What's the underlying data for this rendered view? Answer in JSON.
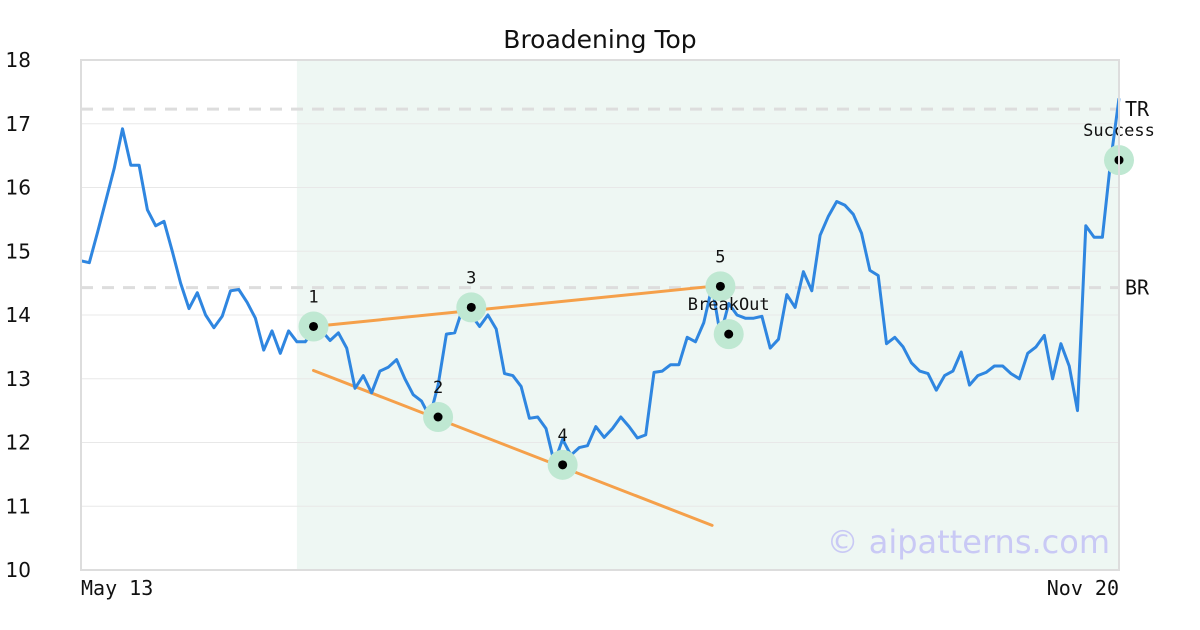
{
  "chart_data": {
    "type": "line",
    "title": "Broadening Top",
    "x_start_label": "May 13",
    "x_end_label": "Nov 20",
    "ylim": [
      10,
      18
    ],
    "yticks": [
      "10",
      "11",
      "12",
      "13",
      "14",
      "15",
      "16",
      "17",
      "18"
    ],
    "grid": "horizontal",
    "colors": {
      "price": "#2f86e0",
      "trendline": "#f5a04a",
      "level_line": "#dddddd",
      "highlight_zone": "#eef7f3",
      "marker_halo": "#bfe8d2",
      "marker": "#000000"
    },
    "series": [
      {
        "values": [
          14.85,
          14.82,
          15.3,
          15.8,
          16.3,
          16.92,
          16.35,
          16.35,
          15.65,
          15.4,
          15.47,
          15.0,
          14.5,
          14.1,
          14.35,
          14.0,
          13.8,
          13.98,
          14.38,
          14.4,
          14.2,
          13.95,
          13.45,
          13.75,
          13.4,
          13.75,
          13.58,
          13.58,
          13.75,
          13.75,
          13.6,
          13.72,
          13.48,
          12.85,
          13.05,
          12.78,
          13.12,
          13.18,
          13.3,
          13.0,
          12.75,
          12.65,
          12.4,
          12.9,
          13.7,
          13.72,
          14.12,
          14.0,
          13.82,
          14.0,
          13.78,
          13.08,
          13.05,
          12.88,
          12.38,
          12.4,
          12.22,
          11.68,
          12.05,
          11.8,
          11.92,
          11.95,
          12.25,
          12.08,
          12.22,
          12.4,
          12.25,
          12.07,
          12.12,
          13.1,
          13.12,
          13.22,
          13.22,
          13.65,
          13.58,
          13.88,
          14.45,
          13.68,
          14.18,
          14.0,
          13.95,
          13.95,
          13.98,
          13.48,
          13.62,
          14.32,
          14.12,
          14.68,
          14.38,
          15.25,
          15.55,
          15.78,
          15.72,
          15.58,
          15.28,
          14.7,
          14.62,
          13.55,
          13.65,
          13.5,
          13.25,
          13.12,
          13.08,
          12.82,
          13.05,
          13.12,
          13.42,
          12.9,
          13.05,
          13.1,
          13.2,
          13.2,
          13.08,
          13.0,
          13.4,
          13.5,
          13.68,
          13.0,
          13.55,
          13.2,
          12.5,
          15.4,
          15.22,
          15.22,
          16.42,
          17.4
        ]
      }
    ],
    "levels": [
      {
        "label": "TR",
        "y": 17.23
      },
      {
        "label": "BR",
        "y": 14.43
      }
    ],
    "highlight_range": {
      "start_index": 26,
      "end_index": 125
    },
    "trendlines": [
      {
        "from": {
          "index": 28,
          "y": 13.82
        },
        "to": {
          "index": 76,
          "y": 14.45
        }
      },
      {
        "from": {
          "index": 28,
          "y": 13.13
        },
        "to": {
          "index": 76,
          "y": 10.7
        }
      }
    ],
    "points": [
      {
        "label": "1",
        "index": 28,
        "y": 13.82,
        "label_pos": "above"
      },
      {
        "label": "2",
        "index": 43,
        "y": 12.4,
        "label_pos": "above"
      },
      {
        "label": "3",
        "index": 47,
        "y": 14.12,
        "label_pos": "above"
      },
      {
        "label": "4",
        "index": 58,
        "y": 11.65,
        "label_pos": "above"
      },
      {
        "label": "5",
        "index": 77,
        "y": 14.45,
        "label_pos": "above"
      },
      {
        "label": "BreakOut",
        "index": 78,
        "y": 13.7,
        "label_pos": "above"
      },
      {
        "label": "Success",
        "index": 125,
        "y": 16.43,
        "label_pos": "above"
      }
    ],
    "watermark": "© aipatterns.com"
  }
}
